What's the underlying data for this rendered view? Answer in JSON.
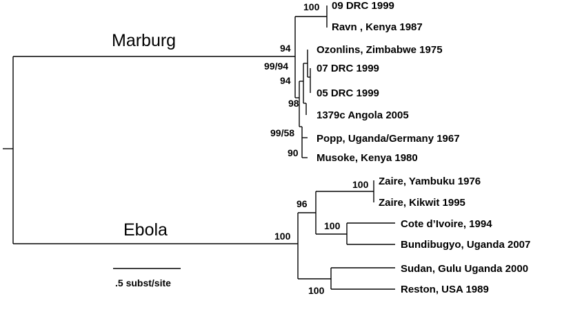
{
  "clades": {
    "marburg": "Marburg",
    "ebola": "Ebola"
  },
  "taxa": {
    "drc09": "09 DRC 1999",
    "ravn": "Ravn , Kenya 1987",
    "ozonlins": "Ozonlins, Zimbabwe 1975",
    "drc07": "07 DRC 1999",
    "drc05": "05 DRC 1999",
    "angola": "1379c Angola 2005",
    "popp": "Popp, Uganda/Germany 1967",
    "musoke": "Musoke, Kenya 1980",
    "yambuku": "Zaire, Yambuku 1976",
    "kikwit": "Zaire, Kikwit 1995",
    "cote": "Cote d’Ivoire, 1994",
    "bundibugyo": "Bundibugyo, Uganda 2007",
    "sudan": "Sudan, Gulu Uganda 2000",
    "reston": "Reston, USA 1989"
  },
  "support": {
    "drc09_ravn": "100",
    "marburg_root": "94",
    "ozonlins_group": "99/94",
    "drc07_drc05": "94",
    "angola_group": "98",
    "popp_group": "99/58",
    "musoke": "90",
    "zaire": "100",
    "zaire_cote_group": "96",
    "cote_bundibugyo": "100",
    "ebola_root": "100",
    "sudan_reston": "100"
  },
  "scale": {
    "label": ".5 subst/site"
  }
}
